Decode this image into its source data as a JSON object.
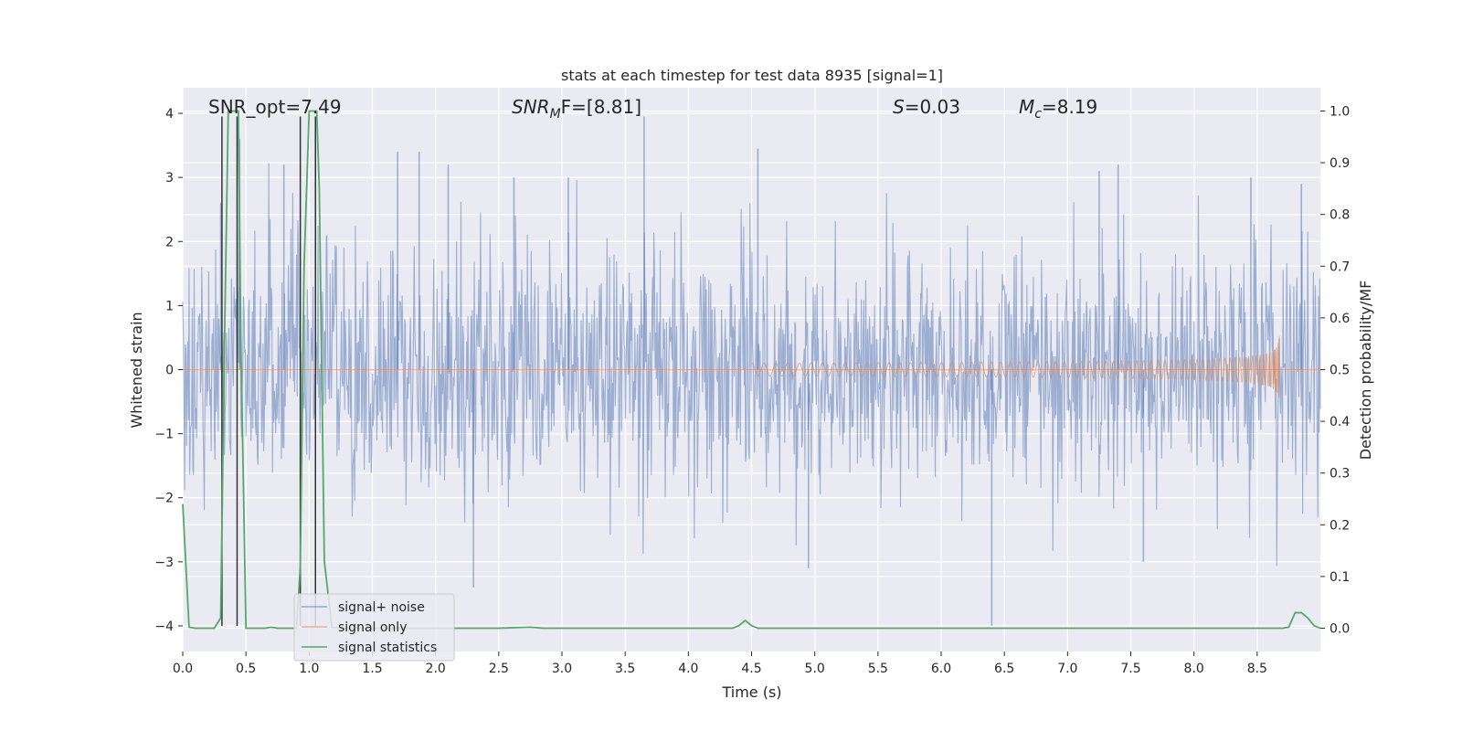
{
  "chart_data": {
    "type": "line",
    "title": "stats at each timestep for test data 8935 [signal=1]",
    "xlabel": "Time (s)",
    "ylabel_left": "Whitened strain",
    "ylabel_right": "Detection probability/MF",
    "xlim": [
      0.0,
      9.0
    ],
    "ylim_left": [
      -4.4,
      4.4
    ],
    "ylim_right": [
      -0.045,
      1.045
    ],
    "x_ticks": [
      0.0,
      0.5,
      1.0,
      1.5,
      2.0,
      2.5,
      3.0,
      3.5,
      4.0,
      4.5,
      5.0,
      5.5,
      6.0,
      6.5,
      7.0,
      7.5,
      8.0,
      8.5
    ],
    "x_tick_labels": [
      "0.0",
      "0.5",
      "1.0",
      "1.5",
      "2.0",
      "2.5",
      "3.0",
      "3.5",
      "4.0",
      "4.5",
      "5.0",
      "5.5",
      "6.0",
      "6.5",
      "7.0",
      "7.5",
      "8.0",
      "8.5"
    ],
    "y_left_ticks": [
      4,
      3,
      2,
      1,
      0,
      -1,
      -2,
      -3,
      -4
    ],
    "y_left_tick_labels": [
      "4",
      "3",
      "2",
      "1",
      "0",
      "−1",
      "−2",
      "−3",
      "−4"
    ],
    "y_right_ticks": [
      1.0,
      0.9,
      0.8,
      0.7,
      0.6,
      0.5,
      0.4,
      0.3,
      0.2,
      0.1,
      0.0
    ],
    "y_right_tick_labels": [
      "1.0",
      "0.9",
      "0.8",
      "0.7",
      "0.6",
      "0.5",
      "0.4",
      "0.3",
      "0.2",
      "0.1",
      "0.0"
    ],
    "grid": true,
    "legend_position": "lower-left",
    "annotations": {
      "snr_opt": "SNR_opt=7.49",
      "snr_mf_main": "SNR",
      "snr_mf_sub": "M",
      "snr_mf_rest": "F=[8.81]",
      "s_var": "S",
      "s_val": "=0.03",
      "mc_var": "M",
      "mc_sub": "c",
      "mc_val": "=8.19"
    },
    "series": [
      {
        "name": "signal+ noise",
        "axis": "left",
        "color": "#4c72b0",
        "description_peaks": [
          [
            0.3,
            2.6
          ],
          [
            0.45,
            3.6
          ],
          [
            0.8,
            3.2
          ],
          [
            1.05,
            3.9
          ],
          [
            1.7,
            3.4
          ],
          [
            1.87,
            3.4
          ],
          [
            2.1,
            3.2
          ],
          [
            2.3,
            -3.4
          ],
          [
            2.62,
            3.0
          ],
          [
            3.05,
            3.0
          ],
          [
            3.65,
            3.95
          ],
          [
            4.55,
            3.45
          ],
          [
            4.95,
            -3.1
          ],
          [
            6.4,
            -4.0
          ],
          [
            7.25,
            3.1
          ],
          [
            7.4,
            3.2
          ],
          [
            7.6,
            -3.0
          ],
          [
            8.45,
            3.0
          ],
          [
            8.85,
            2.9
          ]
        ]
      },
      {
        "name": "signal only",
        "axis": "left",
        "color": "#dd8452",
        "chirp_start": 4.5,
        "chirp_end": 8.68,
        "peak_amplitude": 0.98
      },
      {
        "name": "signal statistics",
        "axis": "right",
        "color": "#55a868",
        "x": [
          0.0,
          0.05,
          0.1,
          0.15,
          0.2,
          0.25,
          0.3,
          0.33,
          0.36,
          0.38,
          0.4,
          0.42,
          0.44,
          0.46,
          0.5,
          0.55,
          0.6,
          0.65,
          0.7,
          0.75,
          0.8,
          0.85,
          0.9,
          0.93,
          0.96,
          1.0,
          1.02,
          1.04,
          1.06,
          1.08,
          1.12,
          1.18,
          1.25,
          1.35,
          1.5,
          1.75,
          2.0,
          2.5,
          2.75,
          2.85,
          3.0,
          3.5,
          4.0,
          4.35,
          4.4,
          4.45,
          4.5,
          4.55,
          4.6,
          5.0,
          6.0,
          7.0,
          8.0,
          8.5,
          8.7,
          8.75,
          8.8,
          8.85,
          8.9,
          8.95,
          9.0
        ],
        "values": [
          0.24,
          0.002,
          0.0,
          0.0,
          0.0,
          0.0,
          0.02,
          0.55,
          1.0,
          1.0,
          1.0,
          1.0,
          1.0,
          0.55,
          0.0,
          0.0,
          0.0,
          0.0,
          0.002,
          0.0,
          0.0,
          0.0,
          0.0,
          0.12,
          0.7,
          1.0,
          1.0,
          1.0,
          1.0,
          0.85,
          0.13,
          0.002,
          0.0,
          0.0,
          0.0,
          0.0,
          0.0,
          0.0,
          0.002,
          0.0,
          0.0,
          0.0,
          0.0,
          0.0,
          0.005,
          0.015,
          0.005,
          0.0,
          0.0,
          0.0,
          0.0,
          0.0,
          0.0,
          0.0,
          0.0,
          0.002,
          0.03,
          0.03,
          0.02,
          0.005,
          0.0
        ]
      }
    ],
    "vertical_markers_x": [
      0.31,
      0.43,
      0.93,
      1.05
    ]
  }
}
